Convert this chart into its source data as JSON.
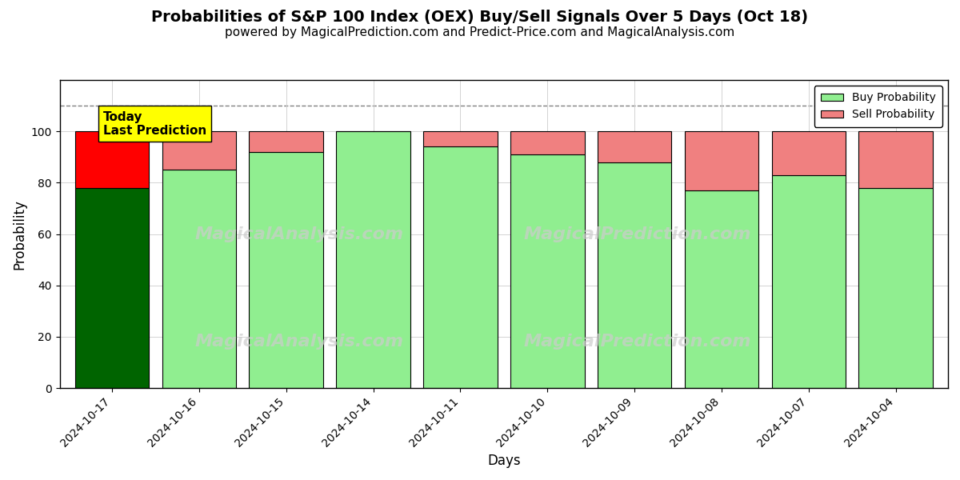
{
  "title": "Probabilities of S&P 100 Index (OEX) Buy/Sell Signals Over 5 Days (Oct 18)",
  "subtitle": "powered by MagicalPrediction.com and Predict-Price.com and MagicalAnalysis.com",
  "xlabel": "Days",
  "ylabel": "Probability",
  "dates": [
    "2024-10-17",
    "2024-10-16",
    "2024-10-15",
    "2024-10-14",
    "2024-10-11",
    "2024-10-10",
    "2024-10-09",
    "2024-10-08",
    "2024-10-07",
    "2024-10-04"
  ],
  "buy_probs": [
    78,
    85,
    92,
    100,
    94,
    91,
    88,
    77,
    83,
    78
  ],
  "sell_probs": [
    22,
    15,
    8,
    0,
    6,
    9,
    12,
    23,
    17,
    22
  ],
  "today_buy_color": "#006400",
  "today_sell_color": "#FF0000",
  "buy_color": "#90EE90",
  "sell_color": "#F08080",
  "bar_edge_color": "#000000",
  "today_label_bg": "#FFFF00",
  "today_label_text": "Today\nLast Prediction",
  "legend_buy": "Buy Probability",
  "legend_sell": "Sell Probability",
  "ylim": [
    0,
    120
  ],
  "yticks": [
    0,
    20,
    40,
    60,
    80,
    100
  ],
  "dashed_line_y": 110,
  "watermark_left": "MagicalAnalysis.com",
  "watermark_right": "MagicalPrediction.com",
  "title_fontsize": 14,
  "subtitle_fontsize": 11,
  "axis_label_fontsize": 12,
  "tick_fontsize": 10,
  "bar_width": 0.85
}
